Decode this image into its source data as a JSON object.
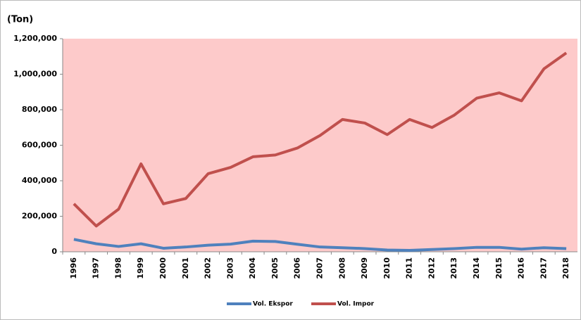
{
  "chart_data": {
    "type": "line",
    "y_label": "(Ton)",
    "categories": [
      "1996",
      "1997",
      "1998",
      "1999",
      "2000",
      "2001",
      "2002",
      "2003",
      "2004",
      "2005",
      "2006",
      "2007",
      "2008",
      "2009",
      "2010",
      "2011",
      "2012",
      "2013",
      "2014",
      "2015",
      "2016",
      "2017",
      "2018"
    ],
    "series": [
      {
        "name": "Vol. Ekspor",
        "color": "#4f81bd",
        "values": [
          70000,
          45000,
          30000,
          45000,
          20000,
          27000,
          37000,
          43000,
          60000,
          58000,
          42000,
          27000,
          23000,
          18000,
          10000,
          8000,
          13000,
          18000,
          25000,
          25000,
          15000,
          23000,
          18000
        ]
      },
      {
        "name": "Vol. Impor",
        "color": "#c0504d",
        "values": [
          270000,
          145000,
          240000,
          495000,
          270000,
          300000,
          440000,
          475000,
          535000,
          545000,
          585000,
          655000,
          745000,
          725000,
          660000,
          745000,
          700000,
          770000,
          865000,
          895000,
          850000,
          1030000,
          1120000
        ]
      }
    ],
    "ylim": [
      0,
      1200000
    ],
    "yticks": [
      0,
      {
        "value": 200000,
        "label": "200,000"
      },
      {
        "value": 400000,
        "label": "400,000"
      },
      {
        "value": 600000,
        "label": "600,000"
      },
      {
        "value": 800000,
        "label": "800,000"
      },
      {
        "value": 1000000,
        "label": "1,000,000"
      },
      {
        "value": 1200000,
        "label": "1,200,000"
      }
    ],
    "grid": false,
    "plot_background": "#fdcaca",
    "legend": "bottom"
  }
}
